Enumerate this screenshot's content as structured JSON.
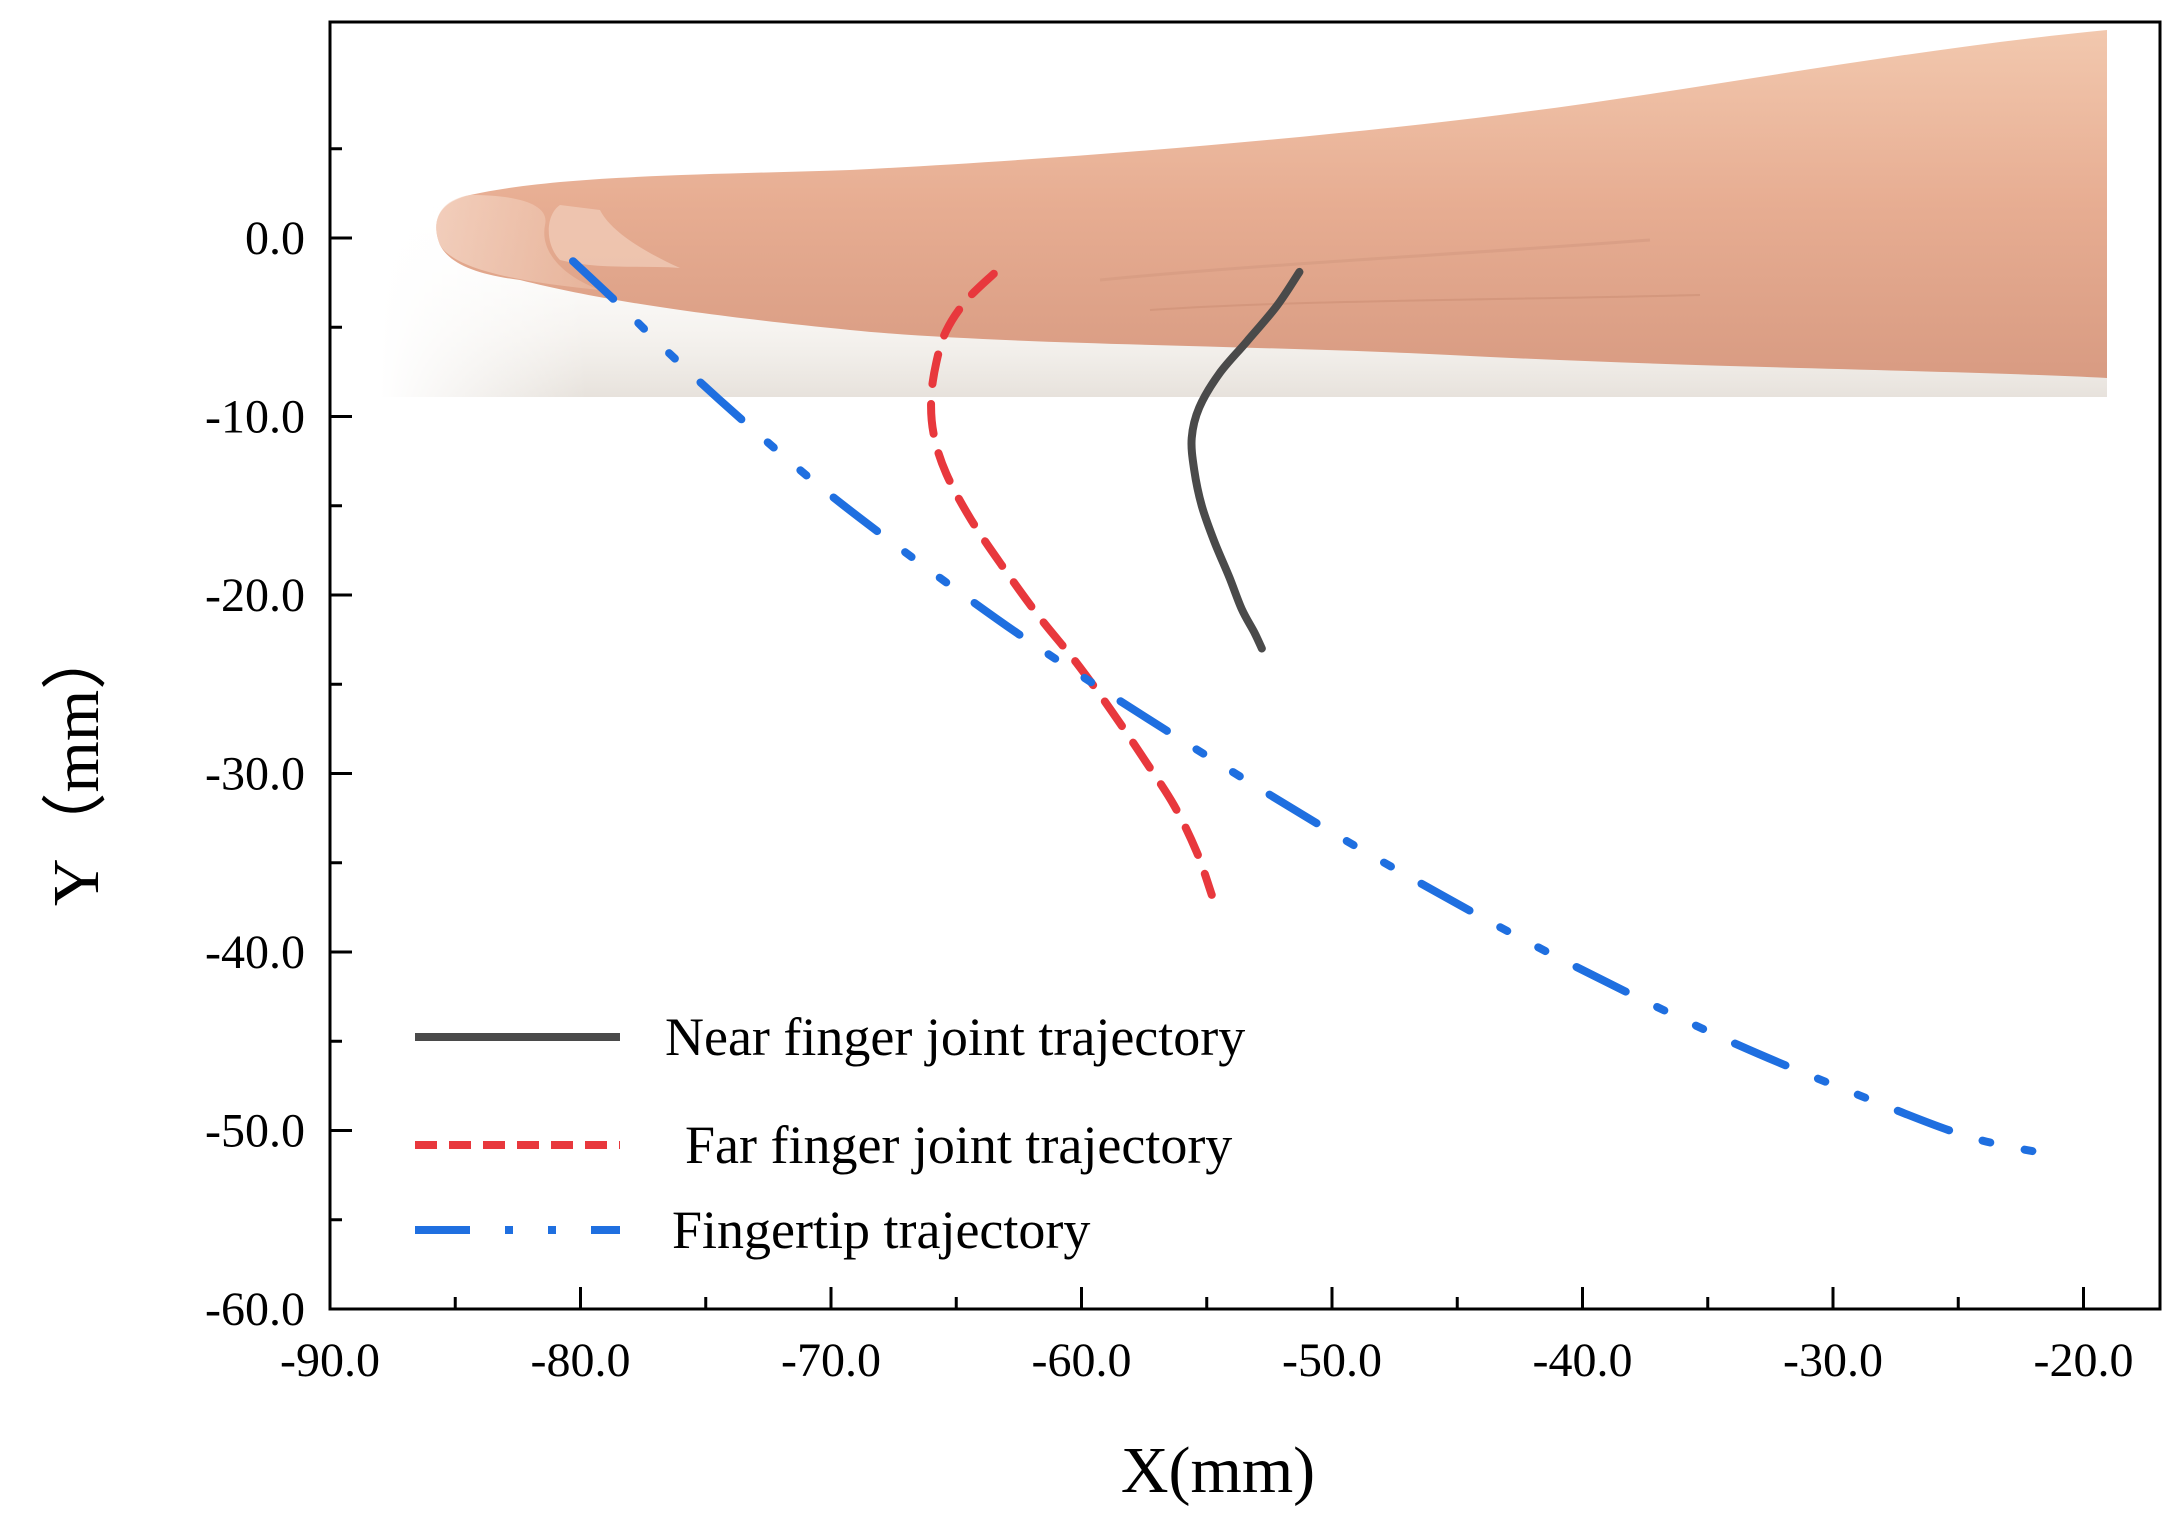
{
  "chart_data": {
    "type": "line",
    "title": "",
    "xlabel": "X(mm)",
    "ylabel": "Y（mm）",
    "xlim": [
      -90,
      -20
    ],
    "ylim": [
      -60,
      12
    ],
    "x_ticks": [
      "-90.0",
      "-80.0",
      "-70.0",
      "-60.0",
      "-50.0",
      "-40.0",
      "-30.0",
      "-20.0"
    ],
    "x_tick_values": [
      -90,
      -80,
      -70,
      -60,
      -50,
      -40,
      -30,
      -20
    ],
    "y_ticks": [
      "0.0",
      "-10.0",
      "-20.0",
      "-30.0",
      "-40.0",
      "-50.0",
      "-60.0"
    ],
    "y_tick_values": [
      0,
      -10,
      -20,
      -30,
      -40,
      -50,
      -60
    ],
    "x_minor_values": [
      -85,
      -75,
      -65,
      -55,
      -45,
      -35,
      -25
    ],
    "y_minor_values": [
      5,
      -5,
      -15,
      -25,
      -35,
      -45,
      -55
    ],
    "grid": false,
    "legend_position": "bottom-left",
    "background_image": "hand-photo",
    "series": [
      {
        "name": "Near finger joint trajectory",
        "color": "#4a4a4a",
        "style": "solid",
        "x": [
          -51.3,
          -52.2,
          -53.4,
          -54.5,
          -55.3,
          -55.6,
          -55.5,
          -55.2,
          -54.7,
          -54.1,
          -53.6,
          -53.1,
          -52.8
        ],
        "y": [
          -1.9,
          -3.8,
          -5.8,
          -7.6,
          -9.5,
          -11.2,
          -13.0,
          -15.0,
          -17.0,
          -19.0,
          -20.8,
          -22.1,
          -23.0
        ]
      },
      {
        "name": "Far finger joint trajectory",
        "color": "#e8383d",
        "style": "dashed",
        "x": [
          -63.5,
          -64.6,
          -65.4,
          -65.8,
          -66.0,
          -65.9,
          -65.4,
          -64.4,
          -63.1,
          -61.7,
          -60.2,
          -58.8,
          -57.5,
          -56.3,
          -55.4,
          -54.8
        ],
        "y": [
          -2.0,
          -3.5,
          -5.2,
          -7.0,
          -9.0,
          -11.0,
          -13.2,
          -15.8,
          -18.5,
          -21.2,
          -23.8,
          -26.5,
          -29.2,
          -31.8,
          -34.4,
          -36.8
        ]
      },
      {
        "name": "Fingertip trajectory",
        "color": "#1f6fe0",
        "style": "dash-dot-dot",
        "x": [
          -80.3,
          -78.4,
          -76.5,
          -74.5,
          -72.4,
          -70.2,
          -67.8,
          -65.2,
          -62.5,
          -59.6,
          -56.6,
          -53.4,
          -50.0,
          -46.4,
          -42.5,
          -38.3,
          -33.8,
          -29.0,
          -24.7,
          -21.5
        ],
        "y": [
          -1.3,
          -3.8,
          -6.4,
          -9.0,
          -11.6,
          -14.2,
          -16.8,
          -19.5,
          -22.2,
          -24.9,
          -27.6,
          -30.4,
          -33.3,
          -36.2,
          -39.2,
          -42.2,
          -45.2,
          -48.0,
          -50.3,
          -51.3
        ]
      }
    ]
  }
}
